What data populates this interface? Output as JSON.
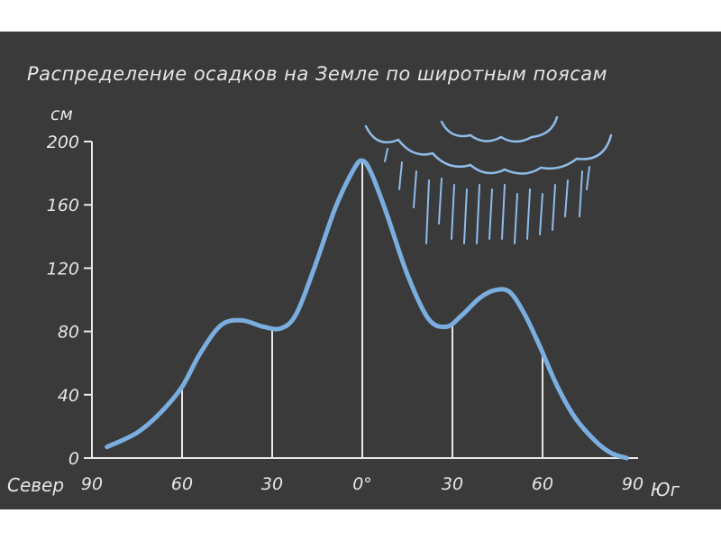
{
  "chart_data": {
    "type": "line",
    "title": "Распределение осадков на Земле по широтным поясам",
    "ylabel": "см",
    "xlabel": "",
    "x_direction_labels": {
      "left": "Север",
      "right": "Юг"
    },
    "x_ticks": [
      "90",
      "60",
      "30",
      "0°",
      "30",
      "60",
      "90"
    ],
    "x_tick_values": [
      -90,
      -60,
      -30,
      0,
      30,
      60,
      90
    ],
    "y_ticks": [
      "0",
      "40",
      "80",
      "120",
      "160",
      "200"
    ],
    "ylim": [
      0,
      200
    ],
    "xlim": [
      -90,
      90
    ],
    "grid": false,
    "series": [
      {
        "color": "#7aaee0",
        "x": [
          -85,
          -75,
          -67,
          -60,
          -54,
          -47,
          -40,
          -33,
          -27,
          -22,
          -16,
          -9,
          -3,
          0,
          3,
          8,
          15,
          22,
          28,
          33,
          39,
          44,
          49,
          54,
          59,
          65,
          71,
          78,
          83,
          88
        ],
        "y": [
          7,
          16,
          29,
          45,
          66,
          84,
          87,
          83,
          82,
          91,
          120,
          158,
          182,
          188,
          180,
          155,
          116,
          88,
          83,
          90,
          101,
          106,
          105,
          91,
          71,
          45,
          25,
          10,
          3,
          0
        ]
      }
    ],
    "drop_lines_at_x": [
      -60,
      -30,
      0,
      30,
      60
    ],
    "decoration": [
      "cloud-icon",
      "rain-icon"
    ]
  }
}
